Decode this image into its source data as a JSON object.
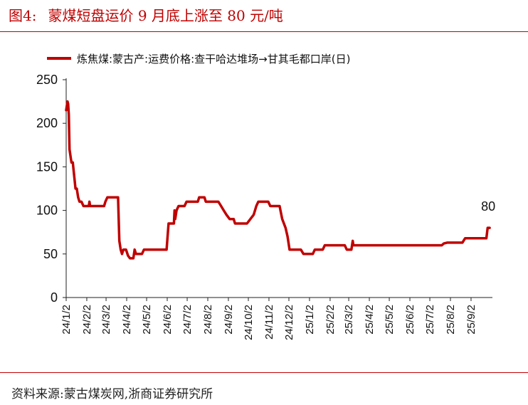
{
  "header": {
    "figure_label": "图4:",
    "title": "蒙煤短盘运价 9 月底上涨至 80 元/吨"
  },
  "footer": {
    "source": "资料来源:蒙古煤炭网,浙商证券研究所"
  },
  "colors": {
    "accent": "#c00000",
    "series": "#c00000"
  },
  "chart_data": {
    "type": "line",
    "title": "",
    "xlabel": "",
    "ylabel": "",
    "ylim": [
      0,
      250
    ],
    "yticks": [
      0,
      50,
      100,
      150,
      200,
      250
    ],
    "grid": false,
    "legend_position": "top",
    "x_ticks": [
      "24/1/2",
      "24/2/2",
      "24/3/2",
      "24/4/2",
      "24/5/2",
      "24/6/2",
      "24/7/2",
      "24/8/2",
      "24/9/2",
      "24/10/2",
      "24/11/2",
      "24/12/2",
      "25/1/2",
      "25/2/2",
      "25/3/2",
      "25/4/2",
      "25/5/2",
      "25/6/2",
      "25/7/2",
      "25/8/2",
      "25/9/2"
    ],
    "annotations": [
      {
        "date": "2025-09-30",
        "text": "80"
      }
    ],
    "series": [
      {
        "name": "炼焦煤:蒙古产:运费价格:查干哈达堆场→甘其毛都口岸(日)",
        "color": "#c00000",
        "points": [
          [
            "2024-01-02",
            215
          ],
          [
            "2024-01-03",
            220
          ],
          [
            "2024-01-04",
            225
          ],
          [
            "2024-01-05",
            222
          ],
          [
            "2024-01-06",
            210
          ],
          [
            "2024-01-07",
            170
          ],
          [
            "2024-01-08",
            165
          ],
          [
            "2024-01-09",
            160
          ],
          [
            "2024-01-10",
            155
          ],
          [
            "2024-01-12",
            155
          ],
          [
            "2024-01-14",
            140
          ],
          [
            "2024-01-16",
            125
          ],
          [
            "2024-01-18",
            125
          ],
          [
            "2024-01-20",
            115
          ],
          [
            "2024-01-22",
            110
          ],
          [
            "2024-01-25",
            110
          ],
          [
            "2024-01-28",
            105
          ],
          [
            "2024-02-05",
            105
          ],
          [
            "2024-02-06",
            110
          ],
          [
            "2024-02-07",
            105
          ],
          [
            "2024-02-25",
            105
          ],
          [
            "2024-02-28",
            105
          ],
          [
            "2024-03-01",
            110
          ],
          [
            "2024-03-04",
            115
          ],
          [
            "2024-03-20",
            115
          ],
          [
            "2024-03-22",
            65
          ],
          [
            "2024-03-24",
            55
          ],
          [
            "2024-03-26",
            50
          ],
          [
            "2024-03-28",
            55
          ],
          [
            "2024-04-01",
            55
          ],
          [
            "2024-04-04",
            48
          ],
          [
            "2024-04-07",
            45
          ],
          [
            "2024-04-12",
            45
          ],
          [
            "2024-04-14",
            55
          ],
          [
            "2024-04-16",
            50
          ],
          [
            "2024-04-25",
            50
          ],
          [
            "2024-04-28",
            55
          ],
          [
            "2024-06-01",
            55
          ],
          [
            "2024-06-04",
            85
          ],
          [
            "2024-06-12",
            85
          ],
          [
            "2024-06-13",
            100
          ],
          [
            "2024-06-14",
            90
          ],
          [
            "2024-06-16",
            100
          ],
          [
            "2024-06-19",
            105
          ],
          [
            "2024-06-28",
            105
          ],
          [
            "2024-07-01",
            110
          ],
          [
            "2024-07-18",
            110
          ],
          [
            "2024-07-20",
            115
          ],
          [
            "2024-07-28",
            115
          ],
          [
            "2024-07-30",
            110
          ],
          [
            "2024-08-18",
            110
          ],
          [
            "2024-08-22",
            105
          ],
          [
            "2024-08-26",
            100
          ],
          [
            "2024-08-30",
            95
          ],
          [
            "2024-09-04",
            90
          ],
          [
            "2024-09-10",
            90
          ],
          [
            "2024-09-12",
            85
          ],
          [
            "2024-09-30",
            85
          ],
          [
            "2024-10-05",
            90
          ],
          [
            "2024-10-10",
            95
          ],
          [
            "2024-10-14",
            105
          ],
          [
            "2024-10-17",
            110
          ],
          [
            "2024-11-01",
            110
          ],
          [
            "2024-11-04",
            105
          ],
          [
            "2024-11-18",
            105
          ],
          [
            "2024-11-22",
            90
          ],
          [
            "2024-11-27",
            80
          ],
          [
            "2024-11-30",
            70
          ],
          [
            "2024-12-03",
            55
          ],
          [
            "2024-12-20",
            55
          ],
          [
            "2024-12-24",
            50
          ],
          [
            "2025-01-07",
            50
          ],
          [
            "2025-01-10",
            55
          ],
          [
            "2025-01-22",
            55
          ],
          [
            "2025-01-25",
            60
          ],
          [
            "2025-02-24",
            60
          ],
          [
            "2025-02-27",
            55
          ],
          [
            "2025-03-06",
            55
          ],
          [
            "2025-03-08",
            65
          ],
          [
            "2025-03-09",
            60
          ],
          [
            "2025-04-15",
            60
          ],
          [
            "2025-06-15",
            60
          ],
          [
            "2025-07-20",
            60
          ],
          [
            "2025-07-23",
            62
          ],
          [
            "2025-07-28",
            63
          ],
          [
            "2025-08-20",
            63
          ],
          [
            "2025-08-24",
            68
          ],
          [
            "2025-09-25",
            68
          ],
          [
            "2025-09-27",
            80
          ],
          [
            "2025-09-30",
            80
          ]
        ]
      }
    ]
  }
}
